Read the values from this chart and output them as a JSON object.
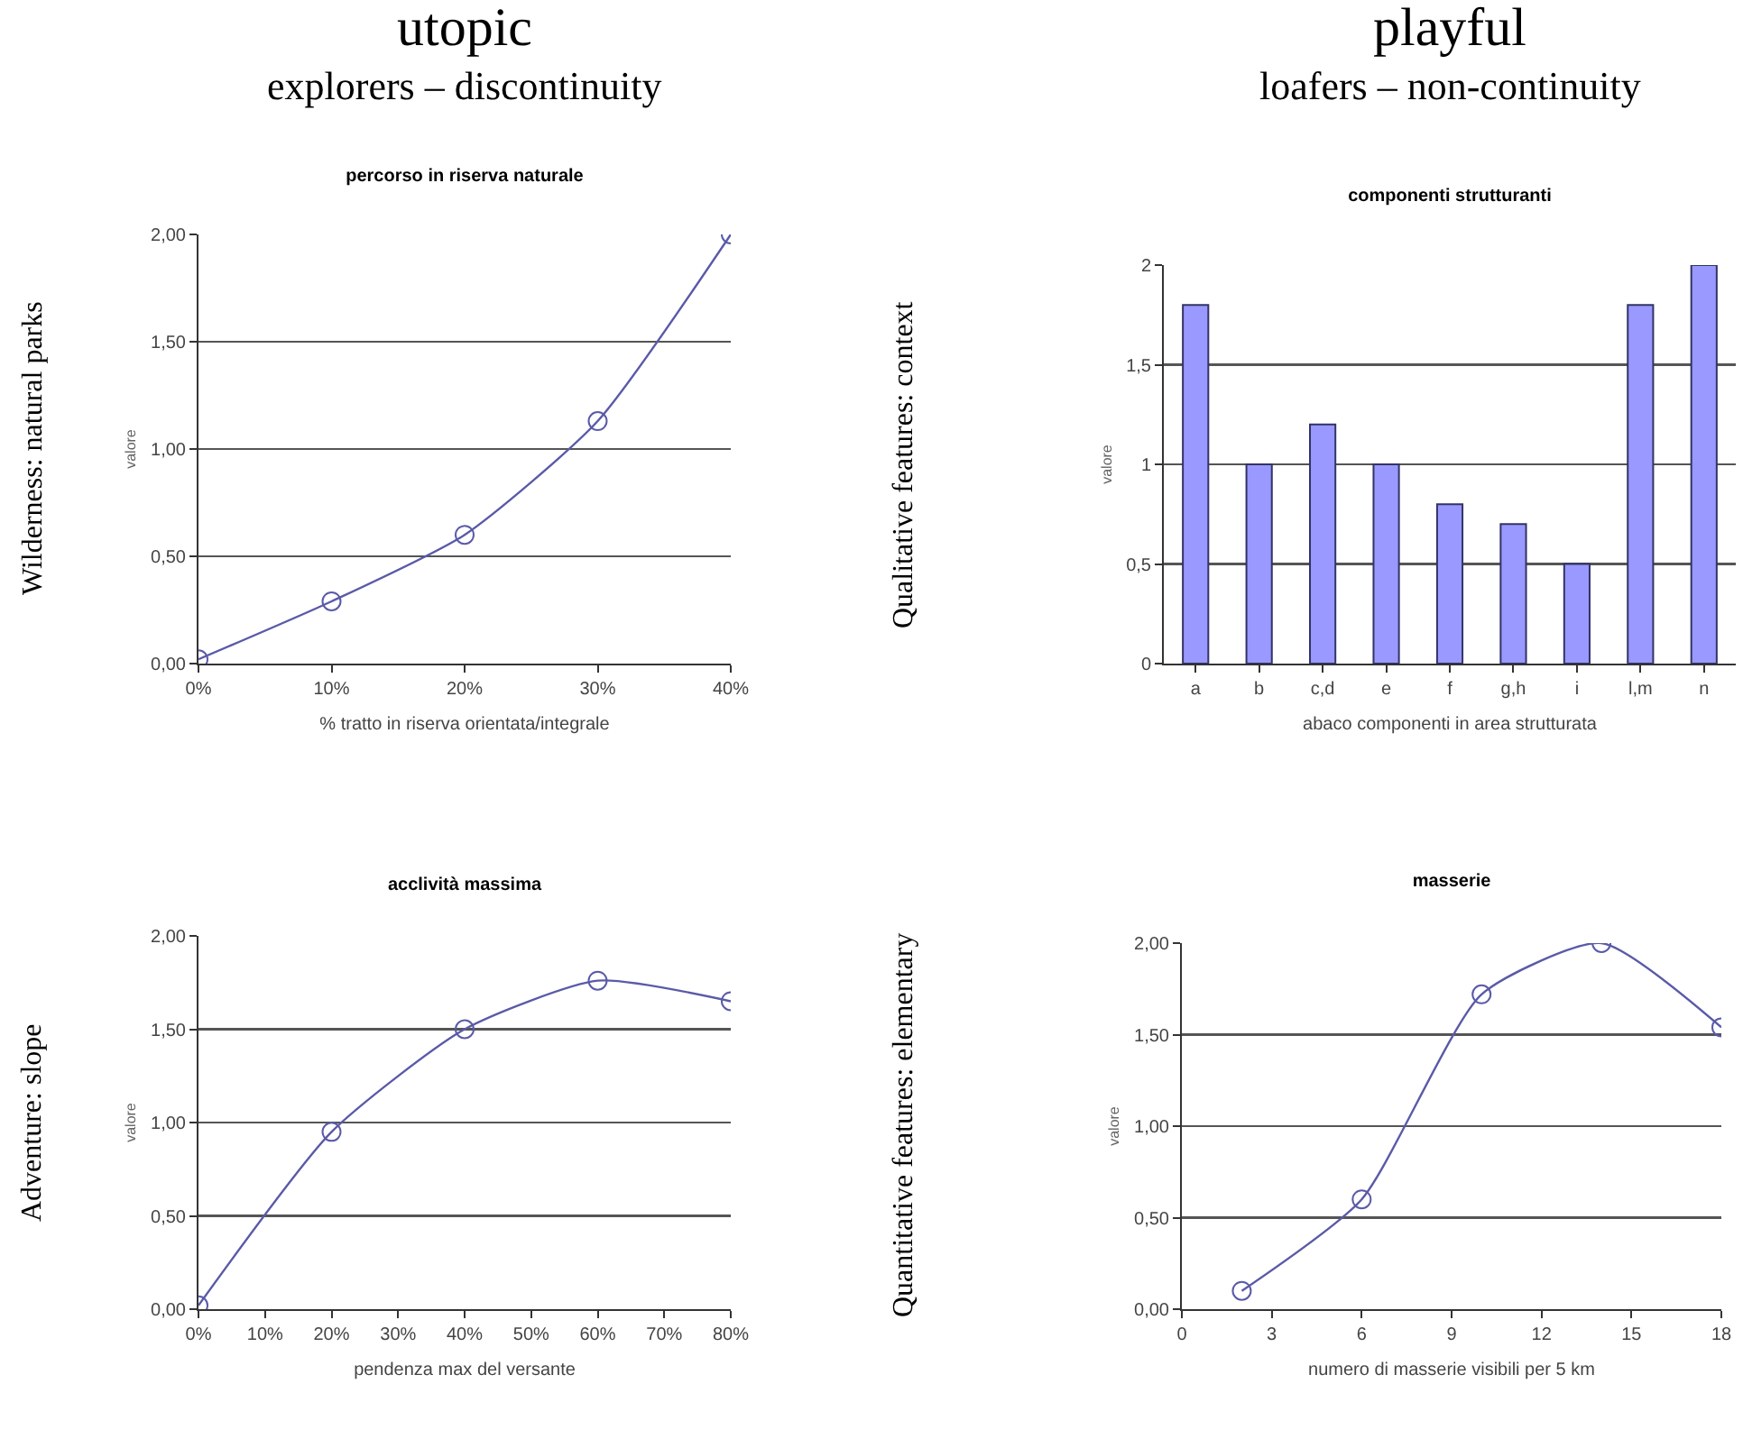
{
  "chart_data": [
    {
      "type": "line",
      "title": "percorso in riserva naturale",
      "xlabel": "% tratto in riserva orientata/integrale",
      "ylabel": "valore",
      "annotations": [
        "utopic",
        "explorers – discontinuity",
        "Wilderness: natural parks"
      ],
      "x": [
        0,
        10,
        20,
        30,
        40
      ],
      "values": [
        0.02,
        0.29,
        0.6,
        1.13,
        2.0
      ],
      "color": "#5a5aa8",
      "xlim": [
        0,
        40
      ],
      "xticks": [
        {
          "value": 0,
          "label": "0%"
        },
        {
          "value": 10,
          "label": "10%"
        },
        {
          "value": 20,
          "label": "20%"
        },
        {
          "value": 30,
          "label": "30%"
        },
        {
          "value": 40,
          "label": "40%"
        }
      ],
      "ylim": [
        0,
        2
      ],
      "yticks": [
        {
          "value": 0,
          "label": "0,00"
        },
        {
          "value": 0.5,
          "label": "0,50"
        },
        {
          "value": 1,
          "label": "1,00"
        },
        {
          "value": 1.5,
          "label": "1,50"
        },
        {
          "value": 2,
          "label": "2,00"
        }
      ],
      "grid": "y",
      "marker": "circle"
    },
    {
      "type": "bar",
      "title": "componenti strutturanti",
      "xlabel": "abaco componenti in area strutturata",
      "ylabel": "valore",
      "annotations": [
        "playful",
        "loafers – non-continuity",
        "Qualitative features: context"
      ],
      "categories": [
        "a",
        "b",
        "c,d",
        "e",
        "f",
        "g,h",
        "i",
        "l,m",
        "n"
      ],
      "values": [
        1.8,
        1.0,
        1.2,
        1.0,
        0.8,
        0.7,
        0.5,
        1.8,
        2.0
      ],
      "color": "#9999ff",
      "ylim": [
        0,
        2
      ],
      "yticks": [
        0,
        {
          "value": 0.5,
          "label": "0,5"
        },
        1,
        {
          "value": 1.5,
          "label": "1,5"
        },
        2
      ],
      "grid": "y"
    },
    {
      "type": "line",
      "title": "acclività massima",
      "xlabel": "pendenza max del versante",
      "ylabel": "valore",
      "annotations": [
        "Adventure: slope"
      ],
      "x": [
        0,
        20,
        40,
        60,
        80
      ],
      "values": [
        0.02,
        0.95,
        1.5,
        1.76,
        1.65
      ],
      "color": "#5a5aa8",
      "xlim": [
        0,
        80
      ],
      "xticks": [
        {
          "value": 0,
          "label": "0%"
        },
        {
          "value": 10,
          "label": "10%"
        },
        {
          "value": 20,
          "label": "20%"
        },
        {
          "value": 30,
          "label": "30%"
        },
        {
          "value": 40,
          "label": "40%"
        },
        {
          "value": 50,
          "label": "50%"
        },
        {
          "value": 60,
          "label": "60%"
        },
        {
          "value": 70,
          "label": "70%"
        },
        {
          "value": 80,
          "label": "80%"
        }
      ],
      "ylim": [
        0,
        2
      ],
      "yticks": [
        {
          "value": 0,
          "label": "0,00"
        },
        {
          "value": 0.5,
          "label": "0,50"
        },
        {
          "value": 1,
          "label": "1,00"
        },
        {
          "value": 1.5,
          "label": "1,50"
        },
        {
          "value": 2,
          "label": "2,00"
        }
      ],
      "grid": "y",
      "marker": "circle"
    },
    {
      "type": "line",
      "title": "masserie",
      "xlabel": "numero di masserie visibili per 5 km",
      "ylabel": "valore",
      "annotations": [
        "Quantitative features: elementary"
      ],
      "x": [
        2,
        6,
        10,
        14,
        18
      ],
      "values": [
        0.1,
        0.6,
        1.72,
        2.0,
        1.54
      ],
      "color": "#5a5aa8",
      "xlim": [
        0,
        18
      ],
      "xticks": [
        0,
        3,
        6,
        9,
        12,
        15,
        18
      ],
      "ylim": [
        0,
        2
      ],
      "yticks": [
        {
          "value": 0,
          "label": "0,00"
        },
        {
          "value": 0.5,
          "label": "0,50"
        },
        {
          "value": 1,
          "label": "1,00"
        },
        {
          "value": 1.5,
          "label": "1,50"
        },
        {
          "value": 2,
          "label": "2,00"
        }
      ],
      "grid": "y",
      "marker": "circle"
    }
  ]
}
